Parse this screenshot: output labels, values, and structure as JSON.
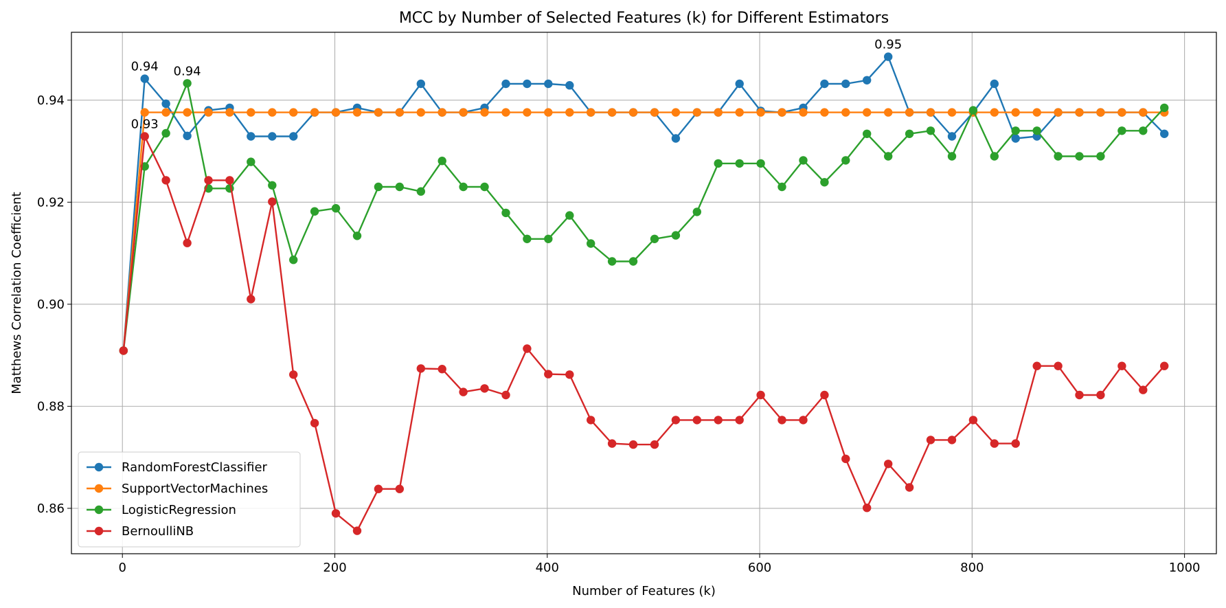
{
  "chart_data": {
    "type": "line",
    "title": "MCC by Number of Selected Features (k) for Different Estimators",
    "xlabel": "Number of Features (k)",
    "ylabel": "Matthews Correlation Coefficient",
    "xlim": [
      -48,
      1030
    ],
    "ylim": [
      0.8511,
      0.9533
    ],
    "xticks": [
      0,
      200,
      400,
      600,
      800,
      1000
    ],
    "xtick_labels": [
      "0",
      "200",
      "400",
      "600",
      "800",
      "1000"
    ],
    "yticks": [
      0.86,
      0.88,
      0.9,
      0.92,
      0.94
    ],
    "ytick_labels": [
      "0.86",
      "0.88",
      "0.90",
      "0.92",
      "0.94"
    ],
    "grid": true,
    "legend_position": "lower-left",
    "x": [
      1,
      21,
      41,
      61,
      81,
      101,
      121,
      141,
      161,
      181,
      201,
      221,
      241,
      261,
      281,
      301,
      321,
      341,
      361,
      381,
      401,
      421,
      441,
      461,
      481,
      501,
      521,
      541,
      561,
      581,
      601,
      621,
      641,
      661,
      681,
      701,
      721,
      741,
      761,
      781,
      801,
      821,
      841,
      861,
      881,
      901,
      921,
      941,
      961,
      981
    ],
    "series": [
      {
        "name": "RandomForestClassifier",
        "color": "#1f77b4",
        "values": [
          0.8909,
          0.9442,
          0.9393,
          0.933,
          0.938,
          0.9385,
          0.9329,
          0.9329,
          0.9329,
          0.9376,
          0.9376,
          0.9385,
          0.9376,
          0.9376,
          0.9432,
          0.9376,
          0.9376,
          0.9385,
          0.9432,
          0.9432,
          0.9432,
          0.9429,
          0.9376,
          0.9376,
          0.9376,
          0.9376,
          0.9325,
          0.9376,
          0.9376,
          0.9432,
          0.9379,
          0.9376,
          0.9385,
          0.9432,
          0.9432,
          0.9439,
          0.9485,
          0.9376,
          0.9376,
          0.9329,
          0.9376,
          0.9432,
          0.9325,
          0.9329,
          0.9376,
          0.9376,
          0.9376,
          0.9376,
          0.9376,
          0.9334
        ]
      },
      {
        "name": "SupportVectorMachines",
        "color": "#ff7f0e",
        "values": [
          0.8909,
          0.9376,
          0.9376,
          0.9376,
          0.9376,
          0.9376,
          0.9376,
          0.9376,
          0.9376,
          0.9376,
          0.9376,
          0.9376,
          0.9376,
          0.9376,
          0.9376,
          0.9376,
          0.9376,
          0.9376,
          0.9376,
          0.9376,
          0.9376,
          0.9376,
          0.9376,
          0.9376,
          0.9376,
          0.9376,
          0.9376,
          0.9376,
          0.9376,
          0.9376,
          0.9376,
          0.9376,
          0.9376,
          0.9376,
          0.9376,
          0.9376,
          0.9376,
          0.9376,
          0.9376,
          0.9376,
          0.9376,
          0.9376,
          0.9376,
          0.9376,
          0.9376,
          0.9376,
          0.9376,
          0.9376,
          0.9376,
          0.9376
        ]
      },
      {
        "name": "LogisticRegression",
        "color": "#2ca02c",
        "values": [
          0.8909,
          0.927,
          0.9335,
          0.9433,
          0.9227,
          0.9227,
          0.9279,
          0.9233,
          0.9087,
          0.9182,
          0.9188,
          0.9134,
          0.923,
          0.923,
          0.9221,
          0.9281,
          0.923,
          0.923,
          0.9179,
          0.9128,
          0.9128,
          0.9174,
          0.9119,
          0.9084,
          0.9084,
          0.9128,
          0.9135,
          0.9181,
          0.9276,
          0.9276,
          0.9276,
          0.923,
          0.9282,
          0.9239,
          0.9282,
          0.9334,
          0.929,
          0.9334,
          0.934,
          0.929,
          0.938,
          0.929,
          0.934,
          0.934,
          0.929,
          0.929,
          0.929,
          0.934,
          0.934,
          0.9385
        ]
      },
      {
        "name": "BernoulliNB",
        "color": "#d62728",
        "values": [
          0.8909,
          0.9329,
          0.9243,
          0.912,
          0.9243,
          0.9243,
          0.901,
          0.9201,
          0.8862,
          0.8767,
          0.859,
          0.8556,
          0.8638,
          0.8638,
          0.8874,
          0.8873,
          0.8828,
          0.8835,
          0.8822,
          0.8913,
          0.8863,
          0.8862,
          0.8773,
          0.8727,
          0.8725,
          0.8725,
          0.8773,
          0.8773,
          0.8773,
          0.8773,
          0.8822,
          0.8773,
          0.8773,
          0.8822,
          0.8697,
          0.8601,
          0.8687,
          0.8641,
          0.8734,
          0.8734,
          0.8773,
          0.8727,
          0.8727,
          0.8879,
          0.8879,
          0.8822,
          0.8822,
          0.8879,
          0.8832,
          0.8879
        ]
      }
    ],
    "annotations": [
      {
        "text": "0.94",
        "x": 21,
        "y": 0.9442
      },
      {
        "text": "0.94",
        "x": 61,
        "y": 0.9433
      },
      {
        "text": "0.93",
        "x": 21,
        "y": 0.9329
      },
      {
        "text": "0.95",
        "x": 721,
        "y": 0.9485
      }
    ]
  }
}
